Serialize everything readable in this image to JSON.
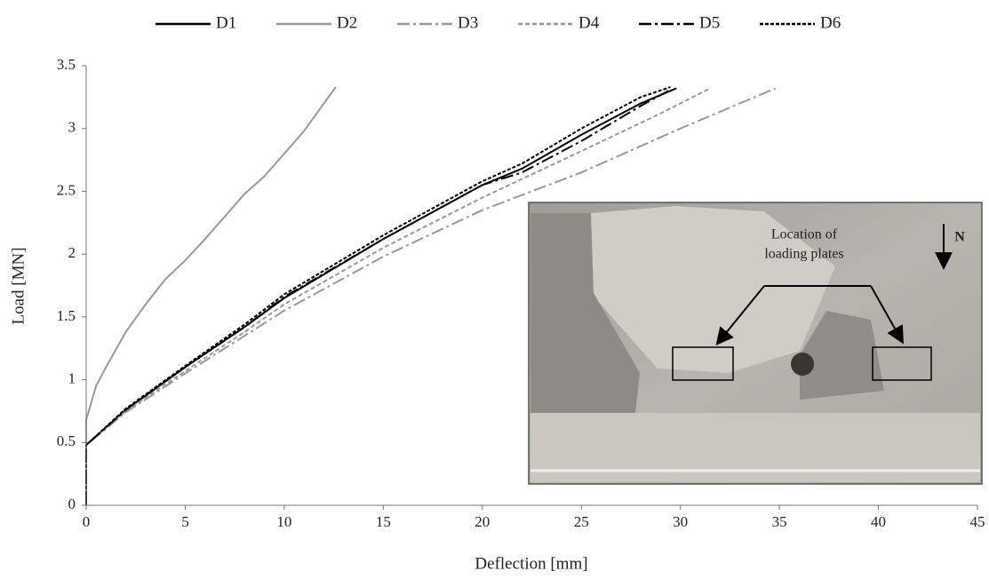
{
  "chart_data": {
    "type": "line",
    "x_label": "Deflection [mm]",
    "y_label": "Load [MN]",
    "xlim": [
      0,
      45
    ],
    "xticks": [
      0,
      5,
      10,
      15,
      20,
      25,
      30,
      35,
      40,
      45
    ],
    "ylim": [
      0,
      3.5
    ],
    "yticks": [
      0,
      0.5,
      1,
      1.5,
      2,
      2.5,
      3,
      3.5
    ],
    "series": [
      {
        "name": "D1",
        "color": "#000000",
        "style": "solid",
        "x": [
          0,
          0,
          2,
          5,
          8,
          10,
          15,
          20,
          22,
          25,
          28,
          29.8
        ],
        "values": [
          0,
          0.48,
          0.76,
          1.1,
          1.42,
          1.65,
          2.12,
          2.55,
          2.68,
          2.95,
          3.2,
          3.32
        ]
      },
      {
        "name": "D2",
        "color": "#999999",
        "style": "solid",
        "x": [
          0,
          0,
          0.5,
          1,
          2,
          3,
          4,
          5,
          6,
          7,
          8,
          9,
          10,
          11,
          12,
          12.6
        ],
        "values": [
          0,
          0.68,
          0.95,
          1.1,
          1.38,
          1.6,
          1.8,
          1.95,
          2.12,
          2.3,
          2.48,
          2.62,
          2.8,
          2.98,
          3.2,
          3.33
        ]
      },
      {
        "name": "D3",
        "color": "#999999",
        "style": "dashdot",
        "x": [
          0,
          0,
          2,
          5,
          8,
          10,
          15,
          20,
          25,
          30,
          34.8
        ],
        "values": [
          0,
          0.48,
          0.74,
          1.05,
          1.35,
          1.55,
          1.98,
          2.35,
          2.65,
          3.0,
          3.32
        ]
      },
      {
        "name": "D4",
        "color": "#999999",
        "style": "dashed",
        "x": [
          0,
          0,
          2,
          5,
          8,
          10,
          15,
          20,
          25,
          29,
          31.5
        ],
        "values": [
          0,
          0.48,
          0.75,
          1.07,
          1.38,
          1.6,
          2.05,
          2.45,
          2.82,
          3.12,
          3.32
        ]
      },
      {
        "name": "D5",
        "color": "#000000",
        "style": "dashdot",
        "x": [
          0,
          0,
          2,
          5,
          8,
          10,
          15,
          20,
          22,
          25,
          28,
          29.4
        ],
        "values": [
          0,
          0.48,
          0.76,
          1.1,
          1.42,
          1.66,
          2.12,
          2.55,
          2.65,
          2.9,
          3.18,
          3.3
        ]
      },
      {
        "name": "D6",
        "color": "#000000",
        "style": "dotted",
        "x": [
          0,
          0,
          2,
          5,
          8,
          10,
          15,
          20,
          22,
          25,
          28,
          29.5
        ],
        "values": [
          0,
          0.48,
          0.77,
          1.11,
          1.44,
          1.68,
          2.15,
          2.58,
          2.72,
          3.0,
          3.25,
          3.33
        ]
      }
    ],
    "annotations": [
      "Location of",
      "loading plates",
      "N"
    ]
  }
}
